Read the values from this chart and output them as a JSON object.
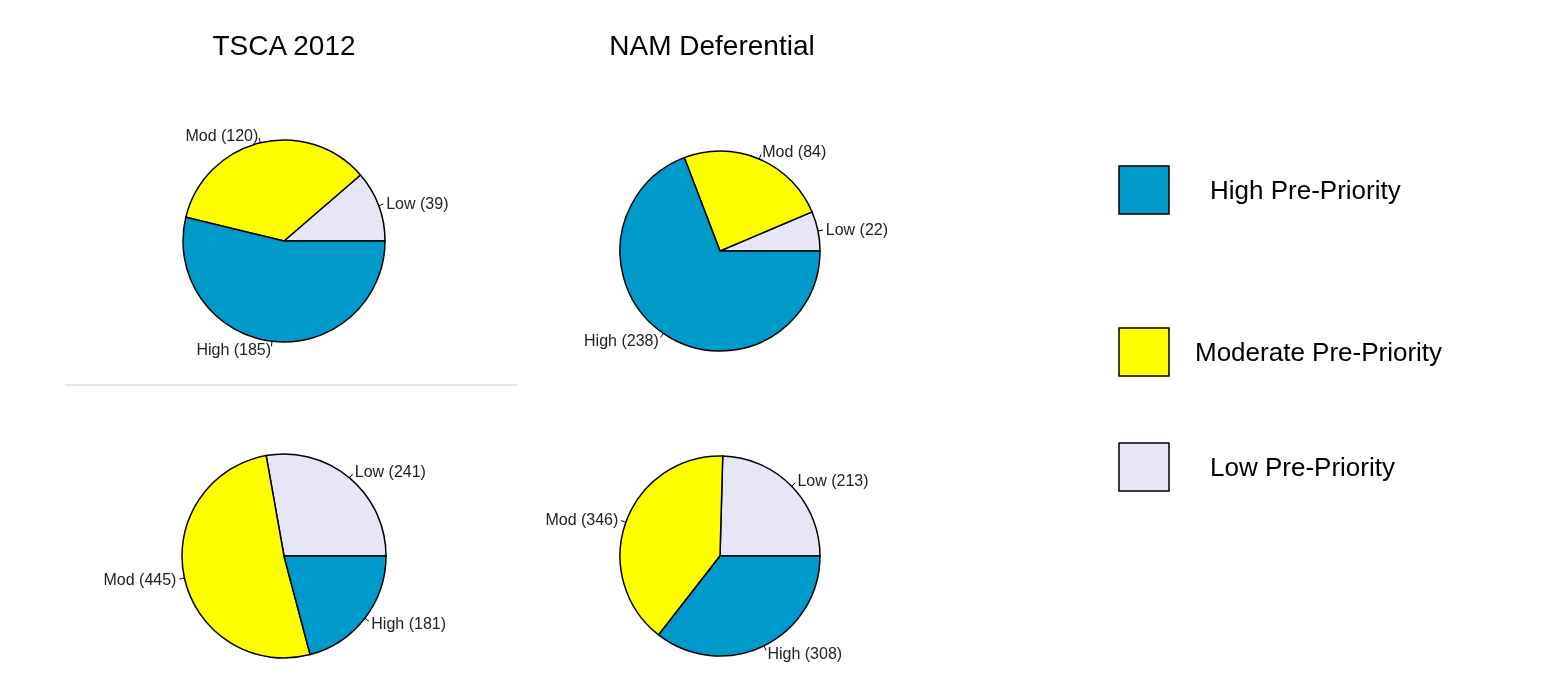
{
  "chart_data": [
    {
      "type": "pie",
      "title": "TSCA 2012",
      "categories": [
        "Low (39)",
        "Mod (120)",
        "High (185)"
      ],
      "values": [
        39,
        120,
        185
      ],
      "colors": [
        "#e6e6f7",
        "#ffff00",
        "#0099cc"
      ]
    },
    {
      "type": "pie",
      "title": "NAM Deferential",
      "categories": [
        "Low (22)",
        "Mod (84)",
        "High (238)"
      ],
      "values": [
        22,
        84,
        238
      ],
      "colors": [
        "#e6e6f7",
        "#ffff00",
        "#0099cc"
      ]
    },
    {
      "type": "pie",
      "categories": [
        "Low (241)",
        "Mod (445)",
        "High (181)"
      ],
      "values": [
        241,
        445,
        181
      ],
      "colors": [
        "#e6e6f7",
        "#ffff00",
        "#0099cc"
      ]
    },
    {
      "type": "pie",
      "categories": [
        "Low (213)",
        "Mod (346)",
        "High (308)"
      ],
      "values": [
        213,
        346,
        308
      ],
      "colors": [
        "#e6e6f7",
        "#ffff00",
        "#0099cc"
      ]
    },
    {
      "type": "other",
      "categories": [
        "High Pre-Priority",
        "Moderate Pre-Priority",
        "Low Pre-Priority"
      ],
      "colors": [
        "#0099cc",
        "#ffff00",
        "#e6e6f7"
      ]
    }
  ]
}
